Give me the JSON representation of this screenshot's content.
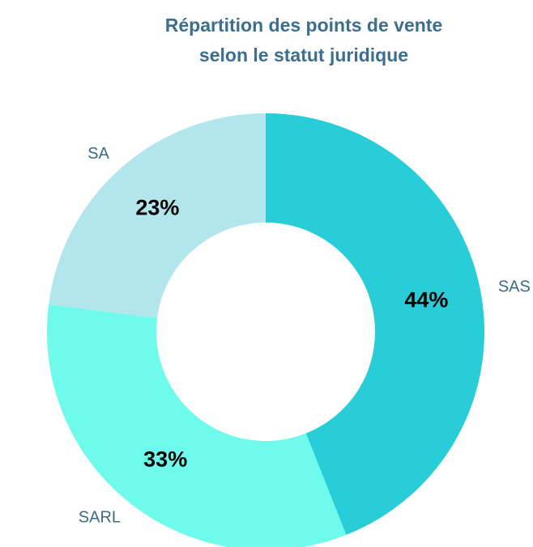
{
  "chart_data": {
    "type": "donut",
    "title": [
      "Répartition des points de vente",
      "selon le statut juridique"
    ],
    "categories": [
      "SAS",
      "SARL",
      "SA"
    ],
    "values": [
      44,
      33,
      23
    ],
    "value_labels": [
      "44%",
      "33%",
      "23%"
    ],
    "colors": [
      "#29cdd8",
      "#6ffbec",
      "#b3e5ec"
    ]
  }
}
